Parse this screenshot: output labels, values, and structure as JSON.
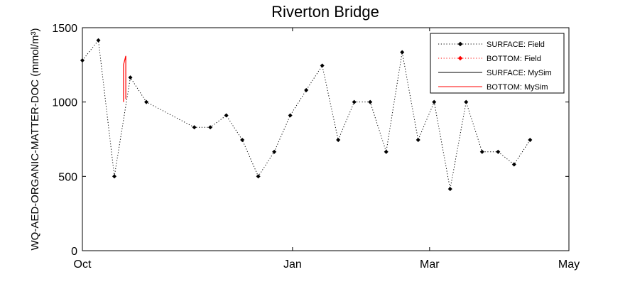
{
  "chart_data": {
    "type": "line",
    "title": "Riverton Bridge",
    "ylabel": "WQ-AED-ORGANIC-MATTER-DOC (mmol/m³)",
    "xlabel": "",
    "xlim": [
      "2011-10-01",
      "2012-05-01"
    ],
    "ylim": [
      0,
      1500
    ],
    "x_ticks": [
      "Oct",
      "Jan",
      "Mar",
      "May"
    ],
    "y_ticks": [
      "0",
      "500",
      "1000",
      "1500"
    ],
    "grid": false,
    "legend_position": "top-right",
    "series": [
      {
        "name": "SURFACE: Field",
        "color": "#000000",
        "line_style": "dotted",
        "marker": "diamond",
        "points": [
          {
            "x": "2011-10-01",
            "y": 1280
          },
          {
            "x": "2011-10-08",
            "y": 1415
          },
          {
            "x": "2011-10-15",
            "y": 500
          },
          {
            "x": "2011-10-22",
            "y": 1165
          },
          {
            "x": "2011-10-29",
            "y": 1000
          },
          {
            "x": "2011-11-19",
            "y": 830
          },
          {
            "x": "2011-11-26",
            "y": 830
          },
          {
            "x": "2011-12-03",
            "y": 910
          },
          {
            "x": "2011-12-10",
            "y": 745
          },
          {
            "x": "2011-12-17",
            "y": 500
          },
          {
            "x": "2011-12-24",
            "y": 665
          },
          {
            "x": "2011-12-31",
            "y": 910
          },
          {
            "x": "2012-01-07",
            "y": 1080
          },
          {
            "x": "2012-01-14",
            "y": 1245
          },
          {
            "x": "2012-01-21",
            "y": 745
          },
          {
            "x": "2012-01-28",
            "y": 1000
          },
          {
            "x": "2012-02-04",
            "y": 1000
          },
          {
            "x": "2012-02-11",
            "y": 665
          },
          {
            "x": "2012-02-18",
            "y": 1335
          },
          {
            "x": "2012-02-25",
            "y": 745
          },
          {
            "x": "2012-03-03",
            "y": 1000
          },
          {
            "x": "2012-03-10",
            "y": 415
          },
          {
            "x": "2012-03-17",
            "y": 1000
          },
          {
            "x": "2012-03-24",
            "y": 665
          },
          {
            "x": "2012-03-31",
            "y": 665
          },
          {
            "x": "2012-04-07",
            "y": 580
          },
          {
            "x": "2012-04-14",
            "y": 745
          }
        ]
      },
      {
        "name": "BOTTOM: Field",
        "color": "#ff0000",
        "line_style": "dotted",
        "marker": "diamond",
        "points": []
      },
      {
        "name": "SURFACE: MySim",
        "color": "#000000",
        "line_style": "solid",
        "marker": "none",
        "points": []
      },
      {
        "name": "BOTTOM: MySim",
        "color": "#ff0000",
        "line_style": "solid",
        "marker": "none",
        "points": [
          {
            "x": "2011-10-19",
            "y": 1000
          },
          {
            "x": "2011-10-19",
            "y": 1250
          },
          {
            "x": "2011-10-20",
            "y": 1310
          },
          {
            "x": "2011-10-20",
            "y": 1240
          },
          {
            "x": "2011-10-20",
            "y": 1020
          }
        ]
      }
    ]
  }
}
